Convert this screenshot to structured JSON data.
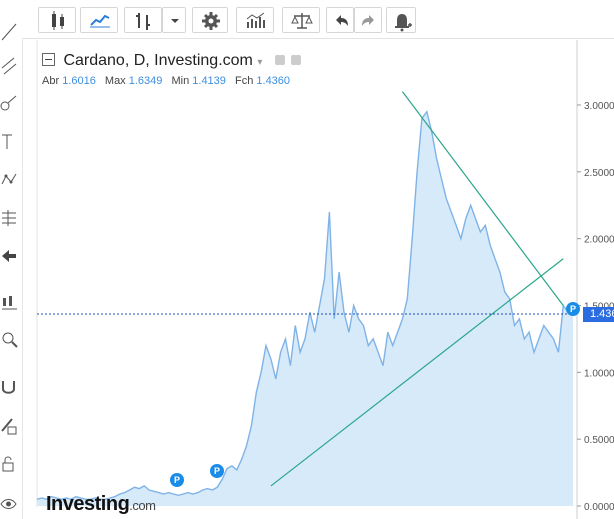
{
  "toolbar": {
    "buttons": [
      {
        "name": "candles-icon"
      },
      {
        "name": "line-chart-icon"
      },
      {
        "name": "bars-icon"
      },
      {
        "name": "dropdown-icon"
      },
      {
        "name": "gear-icon"
      },
      {
        "name": "indicators-icon"
      },
      {
        "name": "scale-icon"
      },
      {
        "name": "undo-icon"
      },
      {
        "name": "redo-icon"
      },
      {
        "name": "alert-bell-icon"
      }
    ]
  },
  "leftbar": {
    "icons": [
      "line-tool-icon",
      "channel-tool-icon",
      "brush-tool-icon",
      "text-tool-icon",
      "pattern-tool-icon",
      "fib-tool-icon",
      "back-arrow-icon",
      "candle-pattern-icon",
      "zoom-icon",
      "magnet-icon",
      "lock-drawing-icon",
      "lock-icon",
      "eye-icon"
    ]
  },
  "legend": {
    "title": "Cardano, D, Investing.com",
    "labels": {
      "open": "Abr",
      "max": "Max",
      "min": "Min",
      "close": "Fch"
    },
    "values": {
      "open": "1.6016",
      "max": "1.6349",
      "min": "1.4139",
      "close": "1.4360"
    }
  },
  "price_tag": "1.4360",
  "logo": {
    "name": "Investing",
    "domain": ".com"
  },
  "badges": [
    "P",
    "P",
    "P"
  ],
  "colors": {
    "line": "#7fb3e8",
    "fill": "#d6eaf9",
    "trend": "#2aa68a",
    "current": "#1f4fb3",
    "accent": "#3d8fe0"
  },
  "chart_data": {
    "type": "area",
    "ylim": [
      0,
      3.25
    ],
    "yticks": [
      "0.0000",
      "0.5000",
      "1.0000",
      "1.5000",
      "2.0000",
      "2.5000",
      "3.0000"
    ],
    "ytick_values": [
      0,
      0.5,
      1,
      1.5,
      2,
      2.5,
      3
    ],
    "current_value": 1.436,
    "series": [
      {
        "values": [
          0.05,
          0.06,
          0.05,
          0.07,
          0.06,
          0.05,
          0.06,
          0.05,
          0.07,
          0.06,
          0.05,
          0.05,
          0.06,
          0.05,
          0.05,
          0.06,
          0.07,
          0.09,
          0.1,
          0.12,
          0.14,
          0.13,
          0.15,
          0.12,
          0.11,
          0.1,
          0.09,
          0.1,
          0.09,
          0.08,
          0.09,
          0.1,
          0.09,
          0.1,
          0.12,
          0.13,
          0.12,
          0.14,
          0.2,
          0.28,
          0.3,
          0.27,
          0.35,
          0.45,
          0.6,
          0.85,
          1.0,
          1.2,
          1.1,
          0.95,
          1.15,
          1.25,
          1.05,
          1.35,
          1.15,
          1.25,
          1.45,
          1.3,
          1.5,
          1.7,
          2.2,
          1.4,
          1.75,
          1.45,
          1.3,
          1.5,
          1.4,
          1.35,
          1.2,
          1.25,
          1.15,
          1.05,
          1.3,
          1.2,
          1.3,
          1.4,
          1.55,
          2.0,
          2.5,
          2.9,
          2.95,
          2.8,
          2.6,
          2.45,
          2.3,
          2.2,
          2.1,
          2.0,
          2.15,
          2.25,
          2.15,
          2.05,
          2.1,
          1.95,
          1.85,
          1.75,
          1.6,
          1.55,
          1.35,
          1.4,
          1.25,
          1.3,
          1.15,
          1.25,
          1.35,
          1.3,
          1.25,
          1.15,
          1.5,
          1.45,
          1.44
        ]
      }
    ],
    "trendlines": [
      {
        "from": [
          75,
          3.1
        ],
        "to": [
          108,
          1.5
        ]
      },
      {
        "from": [
          48,
          0.15
        ],
        "to": [
          108,
          1.85
        ]
      }
    ]
  }
}
